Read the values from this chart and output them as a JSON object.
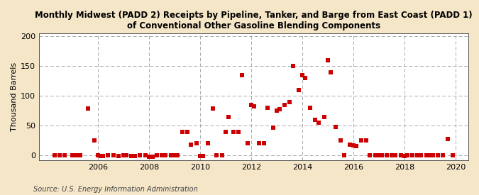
{
  "title": "Monthly Midwest (PADD 2) Receipts by Pipeline, Tanker, and Barge from East Coast (PADD 1)\nof Conventional Other Gasoline Blending Components",
  "ylabel": "Thousand Barrels",
  "source": "Source: U.S. Energy Information Administration",
  "background_color": "#f5e6c8",
  "plot_bg_color": "#ffffff",
  "marker_color": "#cc0000",
  "marker_size": 16,
  "xlim": [
    2003.7,
    2020.5
  ],
  "ylim": [
    -8,
    205
  ],
  "yticks": [
    0,
    50,
    100,
    150,
    200
  ],
  "xticks": [
    2006,
    2008,
    2010,
    2012,
    2014,
    2016,
    2018,
    2020
  ],
  "data_points": [
    [
      2004.3,
      0
    ],
    [
      2004.5,
      0
    ],
    [
      2004.7,
      0
    ],
    [
      2005.0,
      0
    ],
    [
      2005.1,
      0
    ],
    [
      2005.2,
      0
    ],
    [
      2005.3,
      0
    ],
    [
      2005.6,
      79
    ],
    [
      2005.85,
      25
    ],
    [
      2006.0,
      0
    ],
    [
      2006.1,
      -1
    ],
    [
      2006.2,
      -1
    ],
    [
      2006.4,
      0
    ],
    [
      2006.6,
      0
    ],
    [
      2006.8,
      -1
    ],
    [
      2007.0,
      0
    ],
    [
      2007.1,
      0
    ],
    [
      2007.3,
      -1
    ],
    [
      2007.45,
      -1
    ],
    [
      2007.65,
      0
    ],
    [
      2007.85,
      0
    ],
    [
      2008.0,
      -2
    ],
    [
      2008.15,
      -2
    ],
    [
      2008.3,
      0
    ],
    [
      2008.5,
      0
    ],
    [
      2008.65,
      0
    ],
    [
      2008.85,
      0
    ],
    [
      2009.0,
      0
    ],
    [
      2009.1,
      0
    ],
    [
      2009.3,
      40
    ],
    [
      2009.5,
      40
    ],
    [
      2009.65,
      18
    ],
    [
      2009.85,
      20
    ],
    [
      2010.0,
      -1
    ],
    [
      2010.1,
      -1
    ],
    [
      2010.3,
      20
    ],
    [
      2010.5,
      79
    ],
    [
      2010.65,
      0
    ],
    [
      2010.85,
      0
    ],
    [
      2011.0,
      40
    ],
    [
      2011.1,
      65
    ],
    [
      2011.3,
      40
    ],
    [
      2011.5,
      40
    ],
    [
      2011.65,
      135
    ],
    [
      2011.85,
      20
    ],
    [
      2012.0,
      85
    ],
    [
      2012.1,
      82
    ],
    [
      2012.3,
      20
    ],
    [
      2012.5,
      20
    ],
    [
      2012.65,
      80
    ],
    [
      2012.85,
      47
    ],
    [
      2013.0,
      75
    ],
    [
      2013.1,
      78
    ],
    [
      2013.3,
      85
    ],
    [
      2013.5,
      90
    ],
    [
      2013.65,
      150
    ],
    [
      2013.85,
      110
    ],
    [
      2014.0,
      135
    ],
    [
      2014.1,
      130
    ],
    [
      2014.3,
      80
    ],
    [
      2014.5,
      60
    ],
    [
      2014.65,
      55
    ],
    [
      2014.85,
      65
    ],
    [
      2015.0,
      160
    ],
    [
      2015.1,
      140
    ],
    [
      2015.3,
      48
    ],
    [
      2015.5,
      25
    ],
    [
      2015.65,
      0
    ],
    [
      2015.85,
      18
    ],
    [
      2016.0,
      17
    ],
    [
      2016.1,
      16
    ],
    [
      2016.3,
      25
    ],
    [
      2016.5,
      25
    ],
    [
      2016.65,
      0
    ],
    [
      2016.85,
      0
    ],
    [
      2017.0,
      0
    ],
    [
      2017.1,
      0
    ],
    [
      2017.3,
      0
    ],
    [
      2017.5,
      0
    ],
    [
      2017.65,
      0
    ],
    [
      2017.85,
      0
    ],
    [
      2018.0,
      -1
    ],
    [
      2018.1,
      0
    ],
    [
      2018.3,
      0
    ],
    [
      2018.5,
      0
    ],
    [
      2018.65,
      0
    ],
    [
      2018.85,
      0
    ],
    [
      2019.0,
      0
    ],
    [
      2019.1,
      0
    ],
    [
      2019.3,
      0
    ],
    [
      2019.5,
      0
    ],
    [
      2019.7,
      28
    ],
    [
      2019.9,
      0
    ]
  ]
}
